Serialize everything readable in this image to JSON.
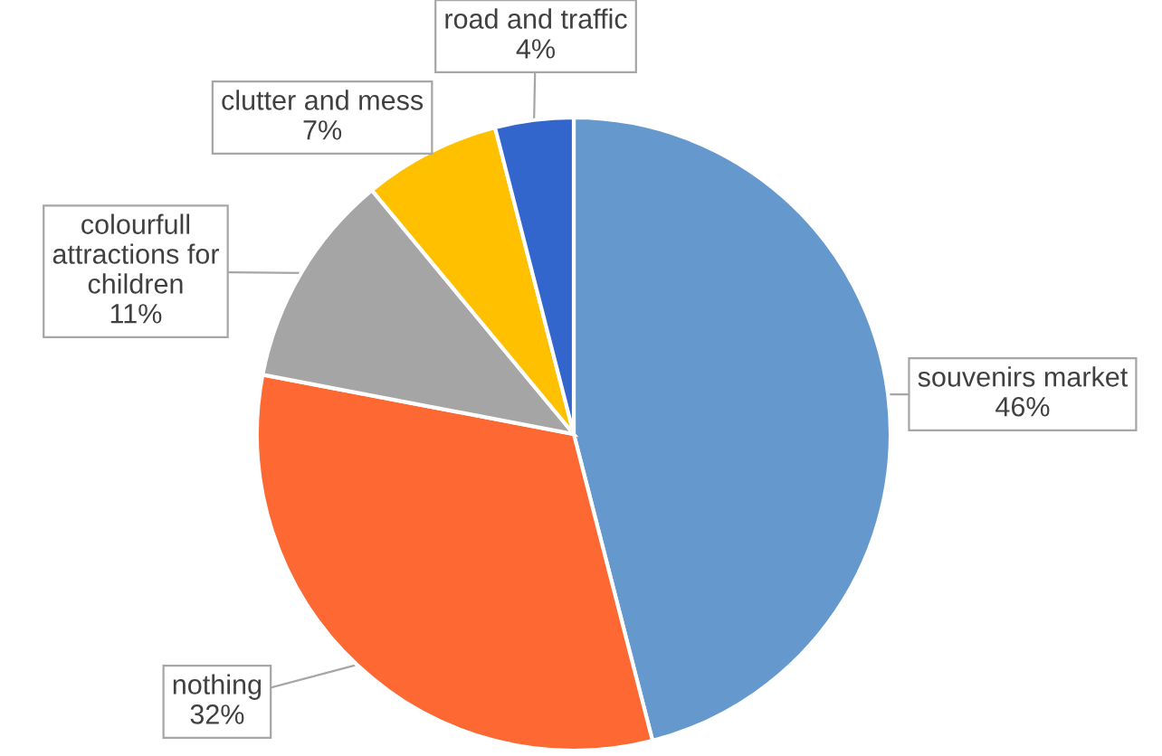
{
  "chart_data": {
    "type": "pie",
    "categories": [
      "souvenirs market",
      "nothing",
      "colourfull\nattractions for\nchildren",
      "clutter and mess",
      "road and traffic"
    ],
    "values": [
      46,
      32,
      11,
      7,
      4
    ],
    "value_labels": [
      "46%",
      "32%",
      "11%",
      "7%",
      "4%"
    ],
    "colors": [
      "#6599cd",
      "#fd6833",
      "#a5a5a5",
      "#ffc000",
      "#3366cc"
    ],
    "legend": false
  }
}
